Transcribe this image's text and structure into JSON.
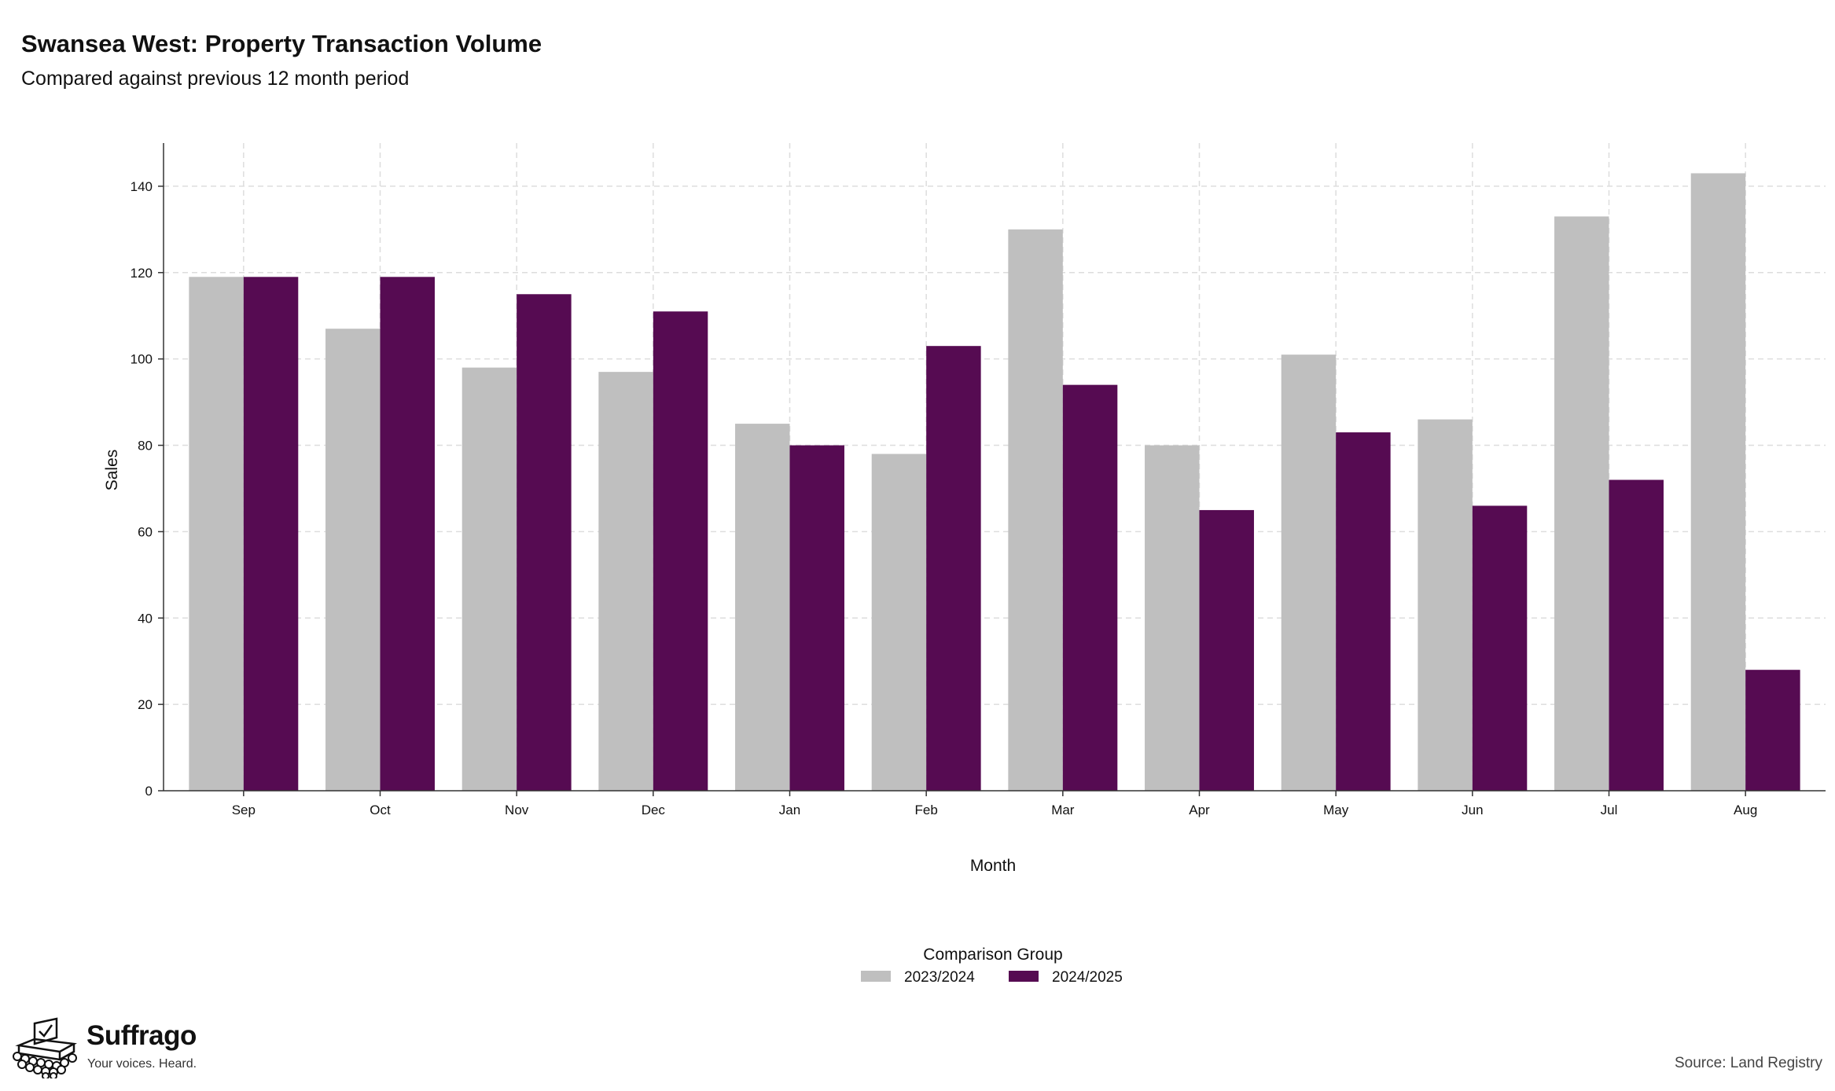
{
  "header": {
    "title": "Swansea West: Property Transaction Volume",
    "subtitle": "Compared against previous 12 month period"
  },
  "chart_data": {
    "type": "bar",
    "xlabel": "Month",
    "ylabel": "Sales",
    "ylim": [
      0,
      150
    ],
    "yticks": [
      0,
      20,
      40,
      60,
      80,
      100,
      120,
      140
    ],
    "grid": true,
    "categories": [
      "Sep",
      "Oct",
      "Nov",
      "Dec",
      "Jan",
      "Feb",
      "Mar",
      "Apr",
      "May",
      "Jun",
      "Jul",
      "Aug"
    ],
    "series": [
      {
        "name": "2023/2024",
        "color": "#bfbfbf",
        "values": [
          119,
          107,
          98,
          97,
          85,
          78,
          130,
          80,
          101,
          86,
          133,
          143
        ]
      },
      {
        "name": "2024/2025",
        "color": "#560b52",
        "values": [
          119,
          119,
          115,
          111,
          80,
          103,
          94,
          65,
          83,
          66,
          72,
          28
        ]
      }
    ],
    "legend": {
      "title": "Comparison Group",
      "placement": "bottom-center"
    }
  },
  "brand": {
    "name": "Suffrago",
    "tagline": "Your voices. Heard."
  },
  "footer": {
    "source": "Source: Land Registry"
  }
}
